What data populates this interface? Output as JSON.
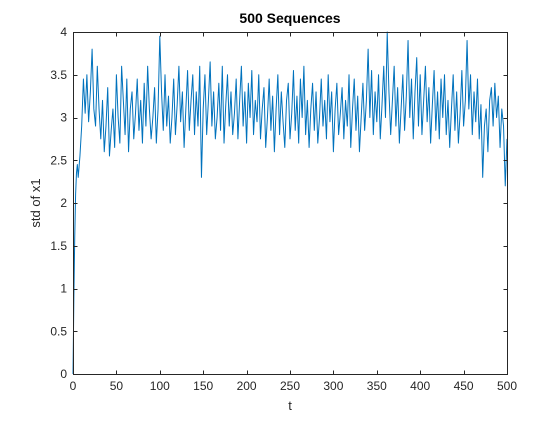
{
  "chart_data": {
    "type": "line",
    "title": "500 Sequences",
    "xlabel": "t",
    "ylabel": "std of x1",
    "xlim": [
      0,
      500
    ],
    "ylim": [
      0,
      4
    ],
    "xticks": [
      0,
      50,
      100,
      150,
      200,
      250,
      300,
      350,
      400,
      450,
      500
    ],
    "yticks": [
      0,
      0.5,
      1,
      1.5,
      2,
      2.5,
      3,
      3.5,
      4
    ],
    "grid": false,
    "line_color": "#0072BD",
    "series": [
      {
        "name": "",
        "x": [
          0,
          1,
          2,
          3,
          4,
          5,
          6,
          8,
          10,
          12,
          14,
          16,
          18,
          20,
          22,
          24,
          26,
          28,
          30,
          32,
          34,
          36,
          38,
          40,
          42,
          44,
          46,
          48,
          50,
          52,
          54,
          56,
          58,
          60,
          62,
          64,
          66,
          68,
          70,
          72,
          74,
          76,
          78,
          80,
          82,
          84,
          86,
          88,
          90,
          92,
          94,
          96,
          98,
          100,
          102,
          104,
          106,
          108,
          110,
          112,
          114,
          116,
          118,
          120,
          122,
          124,
          126,
          128,
          130,
          132,
          134,
          136,
          138,
          140,
          142,
          144,
          146,
          148,
          150,
          152,
          154,
          156,
          158,
          160,
          162,
          164,
          166,
          168,
          170,
          172,
          174,
          176,
          178,
          180,
          182,
          184,
          186,
          188,
          190,
          192,
          194,
          196,
          198,
          200,
          202,
          204,
          206,
          208,
          210,
          212,
          214,
          216,
          218,
          220,
          222,
          224,
          226,
          228,
          230,
          232,
          234,
          236,
          238,
          240,
          242,
          244,
          246,
          248,
          250,
          252,
          254,
          256,
          258,
          260,
          262,
          264,
          266,
          268,
          270,
          272,
          274,
          276,
          278,
          280,
          282,
          284,
          286,
          288,
          290,
          292,
          294,
          296,
          298,
          300,
          302,
          304,
          306,
          308,
          310,
          312,
          314,
          316,
          318,
          320,
          322,
          324,
          326,
          328,
          330,
          332,
          334,
          336,
          338,
          340,
          342,
          344,
          346,
          348,
          350,
          352,
          354,
          356,
          358,
          360,
          362,
          364,
          366,
          368,
          370,
          372,
          374,
          376,
          378,
          380,
          382,
          384,
          386,
          388,
          390,
          392,
          394,
          396,
          398,
          400,
          402,
          404,
          406,
          408,
          410,
          412,
          414,
          416,
          418,
          420,
          422,
          424,
          426,
          428,
          430,
          432,
          434,
          436,
          438,
          440,
          442,
          444,
          446,
          448,
          450,
          452,
          454,
          456,
          458,
          460,
          462,
          464,
          466,
          468,
          470,
          472,
          474,
          476,
          478,
          480,
          482,
          484,
          486,
          488,
          490,
          492,
          494,
          496,
          498,
          500
        ],
        "values": [
          0,
          0.9,
          1.6,
          2.1,
          2.35,
          2.45,
          2.3,
          2.55,
          2.9,
          3.45,
          3.05,
          3.5,
          2.95,
          3.3,
          3.8,
          3.1,
          2.9,
          3.6,
          3.1,
          2.75,
          3.2,
          2.6,
          2.9,
          3.35,
          2.55,
          2.85,
          3.1,
          2.65,
          3.5,
          3.0,
          2.7,
          3.6,
          3.2,
          2.8,
          3.45,
          2.6,
          3.1,
          3.3,
          2.75,
          3.05,
          3.45,
          2.85,
          3.2,
          2.7,
          3.4,
          2.9,
          3.6,
          3.1,
          2.75,
          3.0,
          3.35,
          2.7,
          3.1,
          3.95,
          3.3,
          2.85,
          3.5,
          2.9,
          3.25,
          2.7,
          3.0,
          3.45,
          2.8,
          3.15,
          3.6,
          2.95,
          3.3,
          2.65,
          3.1,
          3.55,
          2.85,
          3.2,
          3.5,
          2.8,
          3.3,
          2.9,
          3.6,
          2.3,
          3.1,
          3.5,
          2.8,
          3.2,
          3.65,
          2.9,
          3.3,
          2.75,
          3.0,
          3.4,
          2.85,
          3.6,
          2.7,
          3.15,
          3.5,
          2.9,
          3.3,
          2.8,
          3.05,
          3.45,
          2.75,
          3.2,
          3.6,
          2.9,
          3.3,
          2.7,
          3.4,
          3.0,
          3.55,
          2.8,
          3.2,
          2.95,
          3.5,
          2.75,
          3.1,
          3.35,
          2.65,
          3.0,
          3.45,
          2.85,
          3.25,
          2.6,
          3.1,
          3.5,
          2.8,
          3.3,
          2.95,
          2.65,
          3.2,
          3.4,
          2.75,
          3.05,
          3.55,
          2.85,
          3.25,
          2.7,
          3.45,
          3.0,
          3.6,
          2.8,
          3.2,
          2.65,
          3.1,
          3.4,
          2.85,
          3.3,
          2.7,
          3.0,
          3.45,
          2.9,
          3.2,
          2.75,
          3.5,
          2.95,
          3.3,
          2.6,
          3.1,
          3.4,
          2.8,
          3.05,
          3.35,
          2.75,
          3.2,
          2.9,
          3.5,
          2.65,
          3.1,
          3.45,
          2.85,
          3.25,
          2.6,
          3.0,
          3.4,
          2.85,
          3.2,
          3.8,
          3.0,
          3.55,
          2.8,
          3.3,
          2.95,
          3.5,
          2.75,
          3.15,
          3.6,
          3.0,
          4.0,
          3.3,
          2.8,
          3.2,
          3.6,
          2.9,
          3.35,
          2.7,
          3.1,
          3.5,
          2.85,
          3.25,
          3.9,
          3.0,
          3.45,
          2.75,
          3.3,
          3.7,
          2.9,
          3.5,
          2.8,
          3.2,
          3.6,
          2.95,
          3.35,
          2.7,
          3.15,
          3.55,
          2.85,
          3.3,
          2.75,
          3.45,
          3.0,
          3.5,
          2.8,
          3.2,
          2.65,
          3.1,
          3.5,
          2.85,
          3.3,
          2.7,
          3.05,
          3.55,
          2.9,
          3.2,
          3.9,
          3.1,
          3.5,
          2.8,
          3.3,
          2.95,
          3.45,
          2.75,
          3.15,
          2.3,
          2.9,
          3.1,
          2.6,
          3.2,
          3.35,
          2.9,
          3.4,
          3.0,
          3.25,
          2.65,
          3.1,
          2.9,
          2.2,
          2.75
        ]
      }
    ]
  }
}
